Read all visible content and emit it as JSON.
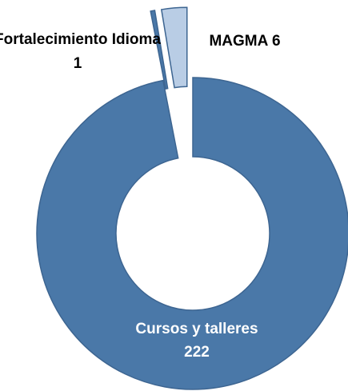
{
  "chart_data": {
    "type": "donut",
    "categories": [
      "Fortalecimiento Idioma",
      "MAGMA",
      "Cursos y talleres"
    ],
    "values": [
      1,
      6,
      222
    ],
    "colors": [
      "#4a78a8",
      "#b9cde5",
      "#4a78a8"
    ]
  }
}
